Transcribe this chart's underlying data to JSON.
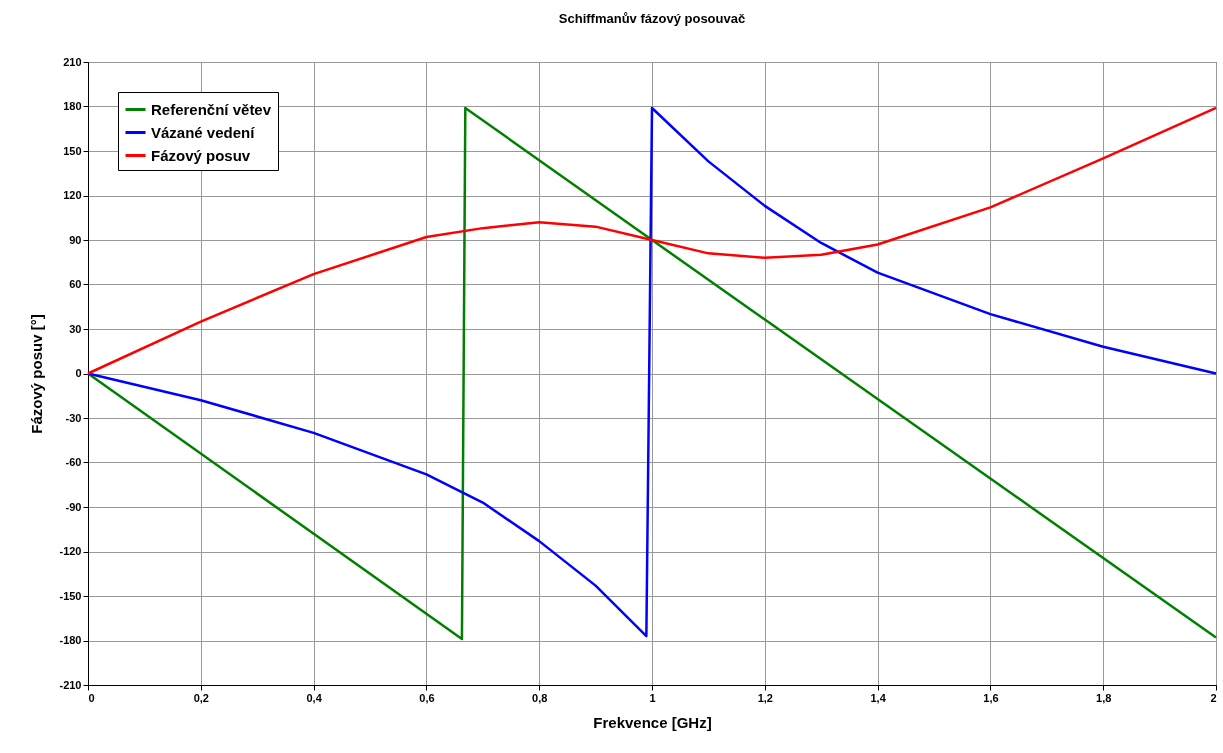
{
  "chart_data": {
    "type": "line",
    "title": "Schiffmanův fázový posouvač",
    "xlabel": "Frekvence [GHz]",
    "ylabel": "Fázový posuv [°]",
    "xlim": [
      0,
      2
    ],
    "xticks": [
      0,
      {
        "value": 0.2,
        "label": "0,2"
      },
      {
        "value": 0.4,
        "label": "0,4"
      },
      {
        "value": 0.6,
        "label": "0,6"
      },
      {
        "value": 0.8,
        "label": "0,8"
      },
      1,
      {
        "value": 1.2,
        "label": "1,2"
      },
      {
        "value": 1.4,
        "label": "1,4"
      },
      {
        "value": 1.6,
        "label": "1,6"
      },
      {
        "value": 1.8,
        "label": "1,8"
      },
      2
    ],
    "ylim": [
      -210,
      210
    ],
    "yticks": [
      -210,
      -180,
      -150,
      -120,
      -90,
      -60,
      -30,
      0,
      30,
      60,
      90,
      120,
      150,
      180,
      210
    ],
    "grid": true,
    "legend": "top left",
    "marker": "none",
    "line_style": "solid",
    "series": [
      {
        "name": "Referenční větev",
        "color": "#008000",
        "x": [
          0,
          0.663,
          0.669,
          1.0,
          2.0
        ],
        "values": [
          0,
          -179,
          179,
          90,
          -178
        ]
      },
      {
        "name": "Vázané vedení",
        "color": "#0000ff",
        "x": [
          0,
          0.2,
          0.4,
          0.6,
          0.7,
          0.8,
          0.9,
          0.99,
          1.0,
          1.1,
          1.2,
          1.3,
          1.4,
          1.6,
          1.8,
          2.0
        ],
        "values": [
          0,
          -18,
          -40,
          -68,
          -87,
          -113,
          -143,
          -177,
          179,
          143,
          113,
          88,
          68,
          40,
          18,
          0
        ]
      },
      {
        "name": "Fázový posuv",
        "color": "#ff0000",
        "x": [
          0,
          0.2,
          0.4,
          0.6,
          0.7,
          0.8,
          0.9,
          1.0,
          1.1,
          1.2,
          1.3,
          1.4,
          1.6,
          1.8,
          2.0
        ],
        "values": [
          0,
          35,
          67,
          92,
          98,
          102,
          99,
          90,
          81,
          78,
          80,
          87,
          112,
          145,
          179
        ]
      }
    ]
  }
}
